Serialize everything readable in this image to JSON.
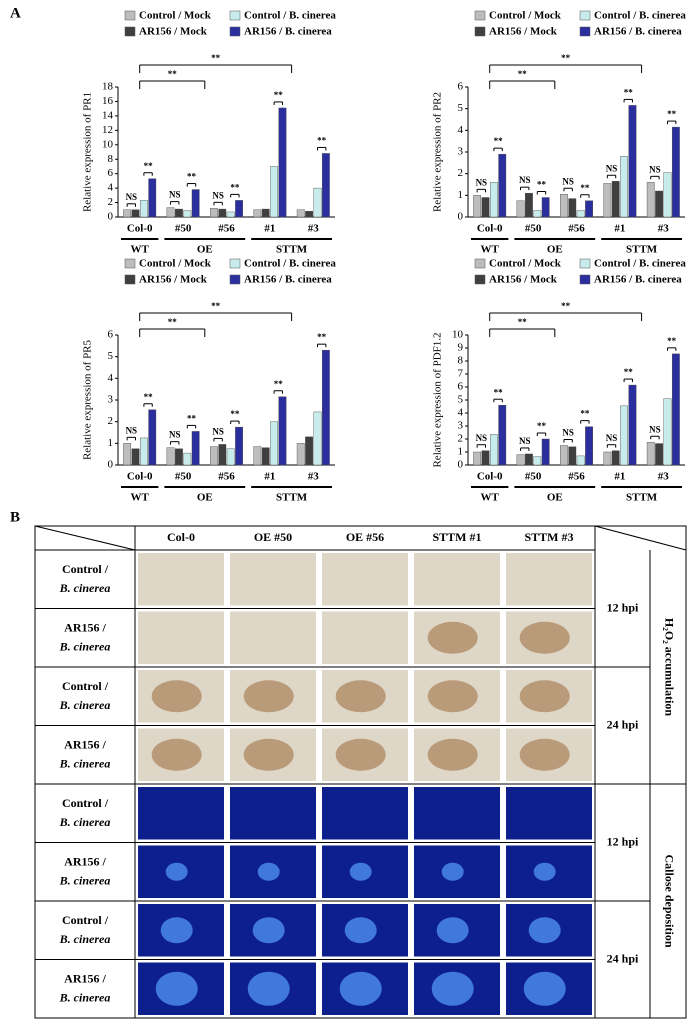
{
  "panel_a_label": "A",
  "panel_b_label": "B",
  "chart_data": [
    {
      "type": "bar",
      "ylabel": "Relative expression of PR1",
      "categories": [
        "Col-0",
        "#50",
        "#56",
        "#1",
        "#3"
      ],
      "groups": [
        "WT",
        "OE",
        "STTM"
      ],
      "category_groups": [
        0,
        1,
        1,
        2,
        2
      ],
      "ylim": [
        0,
        18
      ],
      "yticks": [
        0,
        2,
        4,
        6,
        8,
        10,
        12,
        14,
        16,
        18
      ],
      "series": [
        {
          "name": "Control / Mock",
          "color": "#bdbdbd",
          "values": [
            1.0,
            1.3,
            1.2,
            1.0,
            1.0
          ]
        },
        {
          "name": "AR156 / Mock",
          "color": "#3f3f3f",
          "values": [
            1.0,
            1.1,
            1.1,
            1.1,
            0.8
          ]
        },
        {
          "name": "Control / B. cinerea",
          "color": "#c8ecec",
          "values": [
            2.3,
            0.9,
            0.7,
            7.0,
            4.0
          ]
        },
        {
          "name": "AR156 / B. cinerea",
          "color": "#2b2f9e",
          "values": [
            5.3,
            3.8,
            2.3,
            15.1,
            8.8
          ]
        }
      ],
      "pair_labels": [
        [
          "NS",
          "**"
        ],
        [
          "NS",
          "**"
        ],
        [
          "NS",
          "**"
        ],
        [
          null,
          "**"
        ],
        [
          null,
          "**"
        ]
      ],
      "brackets": [
        "**",
        "**"
      ]
    },
    {
      "type": "bar",
      "ylabel": "Relative expression of PR2",
      "categories": [
        "Col-0",
        "#50",
        "#56",
        "#1",
        "#3"
      ],
      "groups": [
        "WT",
        "OE",
        "STTM"
      ],
      "category_groups": [
        0,
        1,
        1,
        2,
        2
      ],
      "ylim": [
        0,
        6
      ],
      "yticks": [
        0,
        1,
        2,
        3,
        4,
        5,
        6
      ],
      "series": [
        {
          "name": "Control / Mock",
          "color": "#bdbdbd",
          "values": [
            1.0,
            0.75,
            1.05,
            1.55,
            1.6
          ]
        },
        {
          "name": "AR156 / Mock",
          "color": "#3f3f3f",
          "values": [
            0.9,
            1.1,
            0.85,
            1.65,
            1.2
          ]
        },
        {
          "name": "Control / B. cinerea",
          "color": "#c8ecec",
          "values": [
            1.6,
            0.3,
            0.3,
            2.8,
            2.05
          ]
        },
        {
          "name": "AR156 / B. cinerea",
          "color": "#2b2f9e",
          "values": [
            2.9,
            0.9,
            0.75,
            5.15,
            4.15
          ]
        }
      ],
      "pair_labels": [
        [
          "NS",
          "**"
        ],
        [
          "NS",
          "**"
        ],
        [
          "NS",
          "**"
        ],
        [
          "NS",
          "**"
        ],
        [
          "NS",
          "**"
        ]
      ],
      "brackets": [
        "**",
        "**"
      ]
    },
    {
      "type": "bar",
      "ylabel": "Relative expression of PR5",
      "categories": [
        "Col-0",
        "#50",
        "#56",
        "#1",
        "#3"
      ],
      "groups": [
        "WT",
        "OE",
        "STTM"
      ],
      "category_groups": [
        0,
        1,
        1,
        2,
        2
      ],
      "ylim": [
        0,
        6
      ],
      "yticks": [
        0,
        1,
        2,
        3,
        4,
        5,
        6
      ],
      "series": [
        {
          "name": "Control / Mock",
          "color": "#bdbdbd",
          "values": [
            1.0,
            0.8,
            0.85,
            0.85,
            1.0
          ]
        },
        {
          "name": "AR156 / Mock",
          "color": "#3f3f3f",
          "values": [
            0.75,
            0.75,
            0.95,
            0.8,
            1.3
          ]
        },
        {
          "name": "Control / B. cinerea",
          "color": "#c8ecec",
          "values": [
            1.25,
            0.55,
            0.75,
            2.0,
            2.45
          ]
        },
        {
          "name": "AR156 / B. cinerea",
          "color": "#2b2f9e",
          "values": [
            2.55,
            1.55,
            1.75,
            3.15,
            5.3
          ]
        }
      ],
      "pair_labels": [
        [
          "NS",
          "**"
        ],
        [
          "NS",
          "**"
        ],
        [
          "NS",
          "**"
        ],
        [
          null,
          "**"
        ],
        [
          null,
          "**"
        ]
      ],
      "brackets": [
        "**",
        "**"
      ]
    },
    {
      "type": "bar",
      "ylabel": "Relative expression of PDF1.2",
      "categories": [
        "Col-0",
        "#50",
        "#56",
        "#1",
        "#3"
      ],
      "groups": [
        "WT",
        "OE",
        "STTM"
      ],
      "category_groups": [
        0,
        1,
        1,
        2,
        2
      ],
      "ylim": [
        0,
        10
      ],
      "yticks": [
        0,
        1,
        2,
        3,
        4,
        5,
        6,
        7,
        8,
        9,
        10
      ],
      "series": [
        {
          "name": "Control / Mock",
          "color": "#bdbdbd",
          "values": [
            1.0,
            0.8,
            1.5,
            1.0,
            1.75
          ]
        },
        {
          "name": "AR156 / Mock",
          "color": "#3f3f3f",
          "values": [
            1.1,
            0.85,
            1.4,
            1.1,
            1.65
          ]
        },
        {
          "name": "Control / B. cinerea",
          "color": "#c8ecec",
          "values": [
            2.35,
            0.65,
            0.7,
            4.55,
            5.1
          ]
        },
        {
          "name": "AR156 / B. cinerea",
          "color": "#2b2f9e",
          "values": [
            4.6,
            2.0,
            2.95,
            6.15,
            8.55
          ]
        }
      ],
      "pair_labels": [
        [
          "NS",
          "**"
        ],
        [
          "NS",
          "**"
        ],
        [
          "NS",
          "**"
        ],
        [
          "NS",
          "**"
        ],
        [
          "NS",
          "**"
        ]
      ],
      "brackets": [
        "**",
        "**"
      ]
    }
  ],
  "panel_b": {
    "columns": [
      "Col-0",
      "OE #50",
      "OE #56",
      "STTM #1",
      "STTM #3"
    ],
    "rows": [
      [
        "Control /",
        "B. cinerea"
      ],
      [
        "AR156 /",
        "B. cinerea"
      ],
      [
        "Control /",
        "B. cinerea"
      ],
      [
        "AR156 /",
        "B. cinerea"
      ],
      [
        "Control /",
        "B. cinerea"
      ],
      [
        "AR156 /",
        "B. cinerea"
      ],
      [
        "Control /",
        "B. cinerea"
      ],
      [
        "AR156 /",
        "B. cinerea"
      ]
    ],
    "times": [
      "12 hpi",
      "24 hpi",
      "12 hpi",
      "24 hpi"
    ],
    "assays": [
      "H₂O₂ accumulation",
      "Callose deposition"
    ]
  }
}
